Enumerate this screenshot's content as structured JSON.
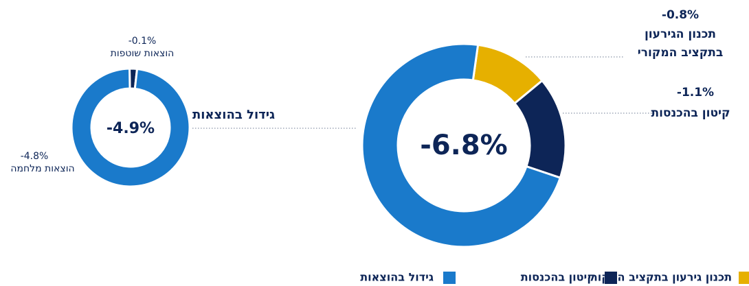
{
  "chart_data": [
    {
      "type": "pie",
      "center": {
        "value": -6.8,
        "label": "-6.8%"
      },
      "categories": [
        "תכנון גירעון בתקציב המקורי",
        "קיטון בהכנסות",
        "גידול בהוצאות"
      ],
      "values": [
        -0.8,
        -1.1,
        -4.9
      ],
      "value_labels": [
        "-0.8%",
        "-1.1%",
        null
      ],
      "annotations": [
        [
          "תכנון הגירעון",
          "בתקציב המקורי"
        ],
        [
          "קיטון בהכנסות"
        ],
        [
          "גידול בהוצאות"
        ]
      ],
      "colors": [
        "#e6b000",
        "#0d2557",
        "#1a7acb"
      ],
      "legend": "bottom"
    },
    {
      "type": "pie",
      "center": {
        "value": -4.9,
        "label": "-4.9%"
      },
      "categories": [
        "הוצאות שוטפות",
        "הוצאות מלחמה"
      ],
      "values": [
        -0.1,
        -4.8
      ],
      "value_labels": [
        "-0.1%",
        "-4.8%"
      ],
      "colors": [
        "#0d2557",
        "#1a7acb"
      ]
    }
  ]
}
